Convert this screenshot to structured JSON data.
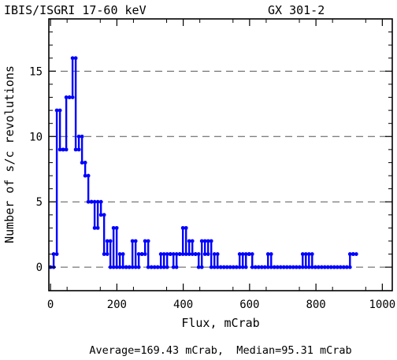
{
  "chart_data": {
    "type": "line",
    "title_left": "IBIS/ISGRI 17-60 keV",
    "title_right": "GX 301-2",
    "xlabel": "Flux, mCrab",
    "ylabel": "Number of s/c revolutions",
    "xlim": [
      -5,
      1030
    ],
    "ylim": [
      -1.8,
      19
    ],
    "xticks": [
      0,
      200,
      400,
      600,
      800,
      1000
    ],
    "yticks": [
      0,
      5,
      10,
      15
    ],
    "grid": "horizontal dashed at y ticks",
    "series": [
      {
        "color": "#0000ff",
        "step_width": 9.5,
        "x": [
          0,
          9.5,
          19,
          28.5,
          38,
          47.5,
          57,
          66.5,
          76,
          85.5,
          95,
          104.5,
          114,
          123.5,
          133,
          142.5,
          152,
          161.5,
          171,
          180.5,
          190,
          199.5,
          209,
          218.5,
          228,
          237.5,
          247,
          256.5,
          266,
          275.5,
          285,
          294.5,
          304,
          313.5,
          323,
          332.5,
          342,
          351.5,
          361,
          370.5,
          380,
          389.5,
          399,
          408.5,
          418,
          427.5,
          437,
          446.5,
          456,
          465.5,
          475,
          484.5,
          494,
          503.5,
          513,
          522.5,
          532,
          541.5,
          551,
          560.5,
          570,
          579.5,
          589,
          598.5,
          608,
          617.5,
          627,
          636.5,
          646,
          655.5,
          665,
          674.5,
          684,
          693.5,
          703,
          712.5,
          722,
          731.5,
          741,
          750.5,
          760,
          769.5,
          779,
          788.5,
          798,
          807.5,
          817,
          826.5,
          836,
          845.5,
          855,
          864.5,
          874,
          883.5,
          893,
          902.5,
          912
        ],
        "y": [
          0,
          1,
          12,
          9,
          9,
          13,
          13,
          16,
          9,
          10,
          8,
          7,
          5,
          5,
          3,
          5,
          4,
          1,
          2,
          0,
          3,
          0,
          1,
          0,
          0,
          0,
          2,
          0,
          1,
          1,
          2,
          0,
          0,
          0,
          0,
          1,
          0,
          1,
          1,
          0,
          1,
          1,
          3,
          1,
          2,
          1,
          1,
          0,
          2,
          1,
          2,
          0,
          1,
          0,
          0,
          0,
          0,
          0,
          0,
          0,
          1,
          0,
          1,
          1,
          0,
          0,
          0,
          0,
          0,
          1,
          0,
          0,
          0,
          0,
          0,
          0,
          0,
          0,
          0,
          0,
          1,
          0,
          1,
          0,
          0,
          0,
          0,
          0,
          0,
          0,
          0,
          0,
          0,
          0,
          0,
          1,
          1
        ]
      }
    ],
    "footer": "Average=169.43 mCrab,  Median=95.31 mCrab"
  }
}
